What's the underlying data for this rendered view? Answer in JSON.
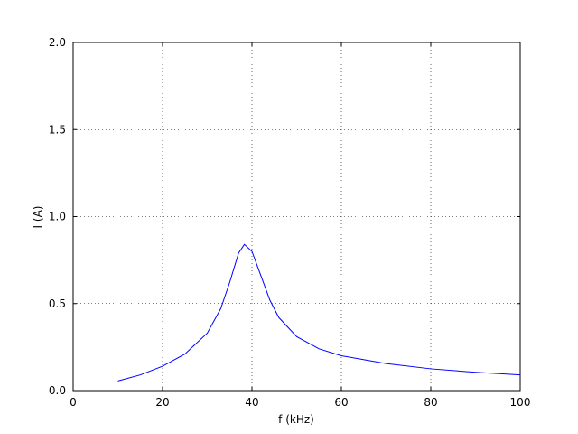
{
  "chart_data": {
    "type": "line",
    "x_label": "f (kHz)",
    "y_label": "I (A)",
    "x": [
      10,
      15,
      20,
      25,
      30,
      33,
      35,
      37,
      38.3,
      40,
      42,
      44,
      46,
      50,
      55,
      60,
      70,
      80,
      90,
      100
    ],
    "series": [
      {
        "color": "#0000ff",
        "values": [
          0.055,
          0.09,
          0.14,
          0.21,
          0.33,
          0.47,
          0.62,
          0.79,
          0.84,
          0.8,
          0.66,
          0.52,
          0.42,
          0.31,
          0.24,
          0.2,
          0.155,
          0.125,
          0.105,
          0.09
        ]
      }
    ],
    "xlim": [
      0,
      100
    ],
    "xticks": [
      0,
      20,
      40,
      60,
      80,
      100
    ],
    "ylim": [
      0,
      2
    ],
    "yticks": [
      {
        "value": 0,
        "label": "0.0"
      },
      0.5,
      {
        "value": 1,
        "label": "1.0"
      },
      1.5,
      {
        "value": 2,
        "label": "2.0"
      }
    ],
    "grid": true
  }
}
